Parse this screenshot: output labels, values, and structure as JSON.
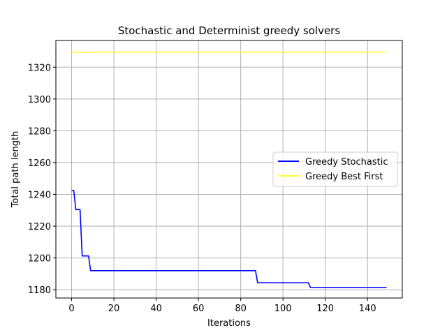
{
  "chart_data": {
    "type": "line",
    "title": "Stochastic and Determinist greedy solvers",
    "xlabel": "Iterations",
    "ylabel": "Total path length",
    "xlim": [
      -7.45,
      156.45
    ],
    "ylim": [
      1174.8,
      1336.8
    ],
    "x_ticks": [
      0,
      20,
      40,
      60,
      80,
      100,
      120,
      140
    ],
    "y_ticks": [
      1180,
      1200,
      1220,
      1240,
      1260,
      1280,
      1300,
      1320
    ],
    "grid": true,
    "legend_position": "center-right",
    "series": [
      {
        "name": "Greedy Stochastic",
        "color": "#0000ff",
        "x": [
          0,
          1,
          2,
          3,
          4,
          5,
          6,
          7,
          8,
          9,
          86,
          87,
          88,
          111,
          112,
          113,
          149
        ],
        "y": [
          1242.4,
          1242.4,
          1230.4,
          1230.4,
          1230.4,
          1201.3,
          1201.3,
          1201.3,
          1201.3,
          1192.0,
          1192.0,
          1192.0,
          1184.4,
          1184.4,
          1184.4,
          1181.5,
          1181.5
        ]
      },
      {
        "name": "Greedy Best First",
        "color": "#ffff33",
        "x": [
          0,
          149
        ],
        "y": [
          1329.4,
          1329.4
        ]
      }
    ]
  }
}
